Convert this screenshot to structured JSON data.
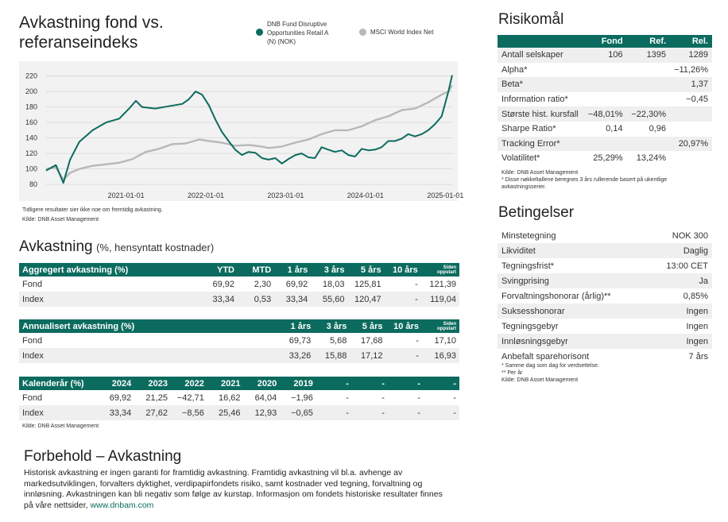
{
  "chart_section": {
    "title_line1": "Avkastning fond vs.",
    "title_line2": "referanseindeks",
    "legend": [
      {
        "lines": [
          "DNB Fund Disruptive",
          "Opportunities Retail A",
          "(N) (NOK)"
        ],
        "color": "#0b6b5e"
      },
      {
        "lines": [
          "MSCI World Index Net"
        ],
        "color": "#b8b8b8"
      }
    ],
    "note": "Tidligere resultater sier ikke noe om fremtidig avkastning.",
    "source": "Kilde: DNB Asset Management"
  },
  "chart_data": {
    "type": "line",
    "y_ticks": [
      80,
      100,
      120,
      140,
      160,
      180,
      200,
      220
    ],
    "x_ticks": [
      "2021-01-01",
      "2022-01-01",
      "2023-01-01",
      "2024-01-01",
      "2025-01-01"
    ],
    "ylim": [
      75,
      233
    ],
    "series": [
      {
        "name": "DNB Fund Disruptive Opportunities Retail A (N) (NOK)",
        "color": "#0b6b5e",
        "x": [
          "2020-01-01",
          "2020-02-15",
          "2020-03-20",
          "2020-04-20",
          "2020-06-01",
          "2020-08-01",
          "2020-10-01",
          "2020-12-01",
          "2021-01-15",
          "2021-02-15",
          "2021-03-15",
          "2021-05-15",
          "2021-07-15",
          "2021-09-15",
          "2021-10-15",
          "2021-11-15",
          "2021-12-15",
          "2022-01-15",
          "2022-02-15",
          "2022-03-15",
          "2022-04-15",
          "2022-05-15",
          "2022-06-15",
          "2022-07-15",
          "2022-08-15",
          "2022-09-15",
          "2022-10-15",
          "2022-11-15",
          "2022-12-15",
          "2023-01-15",
          "2023-02-15",
          "2023-03-15",
          "2023-04-15",
          "2023-05-15",
          "2023-06-15",
          "2023-07-15",
          "2023-08-15",
          "2023-09-15",
          "2023-10-15",
          "2023-11-15",
          "2023-12-15",
          "2024-01-15",
          "2024-02-15",
          "2024-03-15",
          "2024-04-15",
          "2024-05-15",
          "2024-06-15",
          "2024-07-15",
          "2024-08-15",
          "2024-09-15",
          "2024-10-15",
          "2024-11-15",
          "2024-12-15",
          "2025-01-15",
          "2025-02-01"
        ],
        "values": [
          98,
          105,
          82,
          112,
          135,
          150,
          160,
          165,
          178,
          188,
          180,
          178,
          181,
          184,
          190,
          200,
          196,
          182,
          163,
          148,
          136,
          125,
          118,
          122,
          121,
          114,
          112,
          114,
          107,
          113,
          118,
          120,
          115,
          114,
          128,
          125,
          122,
          124,
          118,
          116,
          126,
          124,
          125,
          128,
          136,
          136,
          139,
          145,
          142,
          145,
          150,
          158,
          168,
          200,
          221
        ]
      },
      {
        "name": "MSCI World Index Net",
        "color": "#b8b8b8",
        "x": [
          "2020-01-01",
          "2020-02-15",
          "2020-03-20",
          "2020-04-20",
          "2020-06-01",
          "2020-08-01",
          "2020-10-01",
          "2020-12-01",
          "2021-02-01",
          "2021-04-01",
          "2021-06-01",
          "2021-08-01",
          "2021-10-01",
          "2021-12-01",
          "2022-01-15",
          "2022-03-15",
          "2022-05-15",
          "2022-07-15",
          "2022-09-15",
          "2022-10-15",
          "2022-12-15",
          "2023-02-15",
          "2023-04-15",
          "2023-06-15",
          "2023-08-15",
          "2023-10-15",
          "2023-12-15",
          "2024-02-15",
          "2024-04-15",
          "2024-06-15",
          "2024-08-15",
          "2024-10-15",
          "2024-12-15",
          "2025-01-15",
          "2025-02-01"
        ],
        "values": [
          100,
          102,
          86,
          95,
          100,
          104,
          106,
          108,
          113,
          122,
          126,
          132,
          133,
          138,
          136,
          134,
          130,
          131,
          129,
          127,
          129,
          134,
          138,
          145,
          150,
          150,
          155,
          163,
          168,
          176,
          178,
          186,
          196,
          200,
          208
        ]
      }
    ]
  },
  "returns_section": {
    "title": "Avkastning",
    "subtitle": "(%, hensyntatt kostnader)",
    "aggregate": {
      "headers": [
        "Aggregert avkastning (%)",
        "YTD",
        "MTD",
        "1 års",
        "3 års",
        "5 års",
        "10 års",
        "Siden",
        "oppstart"
      ],
      "rows": [
        [
          "Fond",
          "69,92",
          "2,30",
          "69,92",
          "18,03",
          "125,81",
          "-",
          "121,39"
        ],
        [
          "Index",
          "33,34",
          "0,53",
          "33,34",
          "55,60",
          "120,47",
          "-",
          "119,04"
        ]
      ]
    },
    "annualized": {
      "headers": [
        "Annualisert avkastning (%)",
        "1 års",
        "3 års",
        "5 års",
        "10 års",
        "Siden",
        "oppstart"
      ],
      "rows": [
        [
          "Fond",
          "69,73",
          "5,68",
          "17,68",
          "-",
          "17,10"
        ],
        [
          "Index",
          "33,26",
          "15,88",
          "17,12",
          "-",
          "16,93"
        ]
      ]
    },
    "calendar": {
      "headers": [
        "Kalenderår (%)",
        "2024",
        "2023",
        "2022",
        "2021",
        "2020",
        "2019",
        "-",
        "-",
        "-",
        "-"
      ],
      "rows": [
        [
          "Fond",
          "69,92",
          "21,25",
          "−42,71",
          "16,62",
          "64,04",
          "−1,96",
          "-",
          "-",
          "-",
          "-"
        ],
        [
          "Index",
          "33,34",
          "27,62",
          "−8,56",
          "25,46",
          "12,93",
          "−0,65",
          "-",
          "-",
          "-",
          "-"
        ]
      ]
    },
    "source": "Kilde: DNB Asset Management"
  },
  "disclaimer": {
    "title": "Forbehold – Avkastning",
    "lines": [
      "Historisk avkastning er ingen garanti for framtidig avkastning. Framtidig avkastning vil bl.a. avhenge av",
      "markedsutviklingen, forvalters dyktighet, verdipapirfondets risiko, samt kostnader ved tegning, forvaltning og",
      "innløsning. Avkastningen kan bli negativ som følge av kurstap. Informasjon om fondets historiske resultater finnes",
      "på våre nettsider, "
    ],
    "link": "www.dnbam.com"
  },
  "risk": {
    "title": "Risikomål",
    "headers": [
      "",
      "Fond",
      "Ref.",
      "Rel."
    ],
    "rows": [
      [
        "Antall selskaper",
        "106",
        "1395",
        "1289"
      ],
      [
        "Alpha*",
        "",
        "",
        "−11,26%"
      ],
      [
        "Beta*",
        "",
        "",
        "1,37"
      ],
      [
        "Information ratio*",
        "",
        "",
        "−0,45"
      ],
      [
        "Største hist. kursfall",
        "−48,01%",
        "−22,30%",
        ""
      ],
      [
        "Sharpe Ratio*",
        "0,14",
        "0,96",
        ""
      ],
      [
        "Tracking Error*",
        "",
        "",
        "20,97%"
      ],
      [
        "Volatilitet*",
        "25,29%",
        "13,24%",
        ""
      ]
    ],
    "source": "Kilde: DNB Asset Management",
    "footnote1": "* Disse nøkkeltallene beregnes 3 års rullerende basert på ukentlige",
    "footnote2": "avkastningsserier."
  },
  "conditions": {
    "title": "Betingelser",
    "rows": [
      [
        "Minstetegning",
        "NOK 300"
      ],
      [
        "Likviditet",
        "Daglig"
      ],
      [
        "Tegningsfrist*",
        "13:00 CET"
      ],
      [
        "Svingprising",
        "Ja"
      ],
      [
        "Forvaltningshonorar (årlig)**",
        "0,85%"
      ],
      [
        "Suksesshonorar",
        "Ingen"
      ],
      [
        "Tegningsgebyr",
        "Ingen"
      ],
      [
        "Innløsningsgebyr",
        "Ingen"
      ],
      [
        "Anbefalt sparehorisont",
        "7 års"
      ]
    ],
    "note1": "* Samme dag som dag for verdsettelse.",
    "note2": "** Per år",
    "source": "Kilde: DNB Asset Management"
  }
}
